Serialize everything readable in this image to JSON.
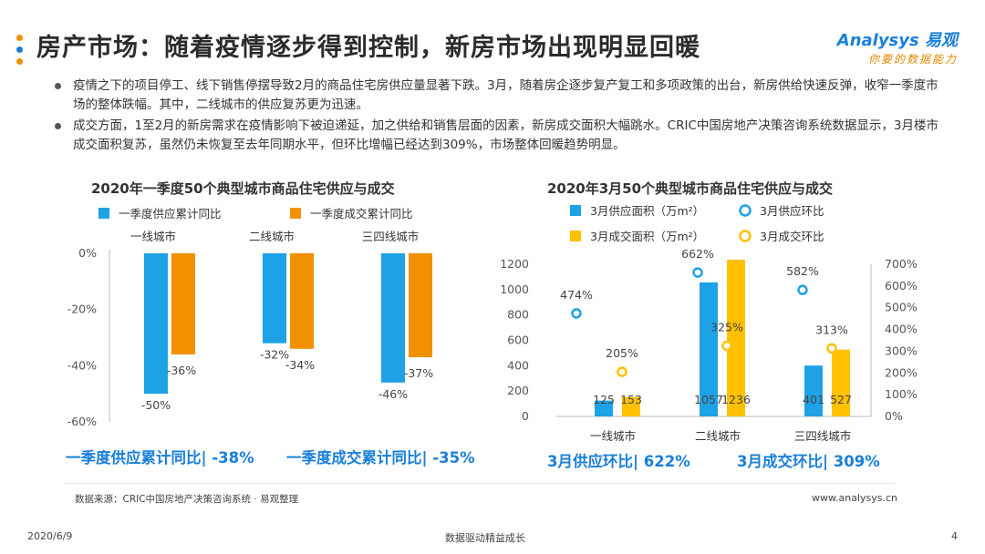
{
  "header": {
    "title": "房产市场：随着疫情逐步得到控制，新房市场出现明显回暖",
    "logo_brand": "Analysys 易观",
    "logo_slogan": "你要的数据能力",
    "dot_colors": [
      "#f29100",
      "#1a7fd9",
      "#f29100"
    ]
  },
  "bullets": [
    "疫情之下的项目停工、线下销售停摆导致2月的商品住宅房供应量显著下跌。3月，随着房企逐步复产复工和多项政策的出台，新房供给快速反弹，收窄一季度市场的整体跌幅。其中，二线城市的供应复苏更为迅速。",
    "成交方面，1至2月的新房需求在疫情影响下被迫递延，加之供给和销售层面的因素，新房成交面积大幅跳水。CRIC中国房地产决策咨询系统数据显示，3月楼市成交面积复苏，虽然仍未恢复至去年同期水平，但环比增幅已经达到309%，市场整体回暖趋势明显。"
  ],
  "chart_data": [
    {
      "type": "bar",
      "title": "2020年一季度50个典型城市商品住宅供应与成交",
      "categories": [
        "一线城市",
        "二线城市",
        "三四线城市"
      ],
      "series": [
        {
          "name": "一季度供应累计同比",
          "values": [
            -50,
            -32,
            -46
          ],
          "color": "#1da2e6"
        },
        {
          "name": "一季度成交累计同比",
          "values": [
            -36,
            -34,
            -37
          ],
          "color": "#f29100"
        }
      ],
      "value_suffix": "%",
      "ylim": [
        -60,
        0
      ],
      "yticks": [
        "0%",
        "-20%",
        "-40%",
        "-60%"
      ],
      "summary": [
        "一季度供应累计同比| -38%",
        "一季度成交累计同比| -35%"
      ]
    },
    {
      "type": "bar+scatter",
      "title": "2020年3月50个典型城市商品住宅供应与成交",
      "categories": [
        "一线城市",
        "二线城市",
        "三四线城市"
      ],
      "series": [
        {
          "name": "3月供应面积（万m²）",
          "values": [
            125,
            1057,
            401
          ],
          "color": "#1da2e6",
          "axis": "left"
        },
        {
          "name": "3月成交面积（万m²）",
          "values": [
            153,
            1236,
            527
          ],
          "color": "#ffc000",
          "axis": "left"
        },
        {
          "name": "3月供应环比",
          "values": [
            474,
            662,
            582
          ],
          "color": "#1da2e6",
          "axis": "right",
          "value_suffix": "%"
        },
        {
          "name": "3月成交环比",
          "values": [
            205,
            325,
            313
          ],
          "color": "#ffc000",
          "axis": "right",
          "value_suffix": "%"
        }
      ],
      "ylim_left": [
        0,
        1200
      ],
      "yticks_left": [
        "0",
        "200",
        "400",
        "600",
        "800",
        "1000",
        "1200"
      ],
      "ylim_right": [
        0,
        700
      ],
      "yticks_right": [
        "0%",
        "100%",
        "200%",
        "300%",
        "400%",
        "500%",
        "600%",
        "700%"
      ],
      "summary": [
        "3月供应环比| 622%",
        "3月成交环比| 309%"
      ]
    }
  ],
  "footer": {
    "source": "数据来源：CRIC中国房地产决策咨询系统 · 易观整理",
    "website": "www.analysys.cn",
    "date": "2020/6/9",
    "slogan": "数据驱动精益成长",
    "page_number": "4"
  }
}
